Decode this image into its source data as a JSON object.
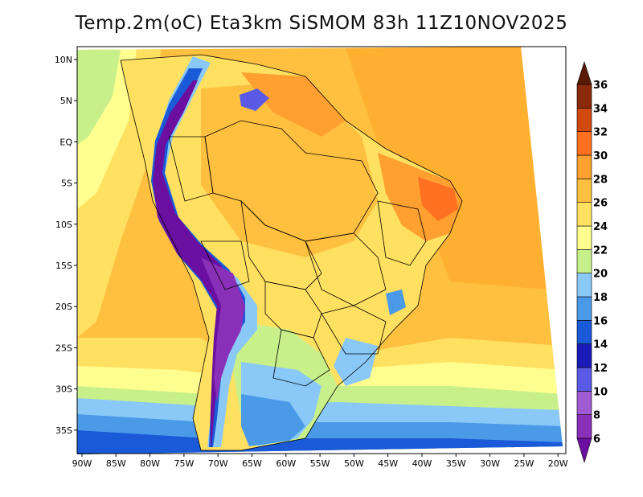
{
  "title": "Temp.2m(oC) Eta3km SiSMOM 83h 11Z10NOV2025",
  "map": {
    "lon_range": [
      -91,
      -20
    ],
    "lat_range": [
      -38,
      12
    ],
    "lon_ticks": [
      "90W",
      "85W",
      "80W",
      "75W",
      "70W",
      "65W",
      "60W",
      "55W",
      "50W",
      "45W",
      "40W",
      "35W",
      "30W",
      "25W",
      "20W"
    ],
    "lat_ticks": [
      "10N",
      "5N",
      "EQ",
      "5S",
      "10S",
      "15S",
      "20S",
      "25S",
      "30S",
      "35S"
    ],
    "variable": "2 m temperature (°C)"
  },
  "colorbar": {
    "levels": [
      "6",
      "8",
      "10",
      "12",
      "14",
      "16",
      "18",
      "20",
      "22",
      "24",
      "26",
      "28",
      "30",
      "32",
      "34",
      "36"
    ],
    "colors": [
      "#6a0fa0",
      "#8a2fb8",
      "#a05ad2",
      "#5a5ae6",
      "#1a1ab8",
      "#1a5ad8",
      "#4a9ae8",
      "#8ac8f8",
      "#c8f08a",
      "#ffff90",
      "#ffe060",
      "#ffc040",
      "#ffa030",
      "#ff7020",
      "#d04a10",
      "#8a2a0a",
      "#5a1a05"
    ]
  }
}
